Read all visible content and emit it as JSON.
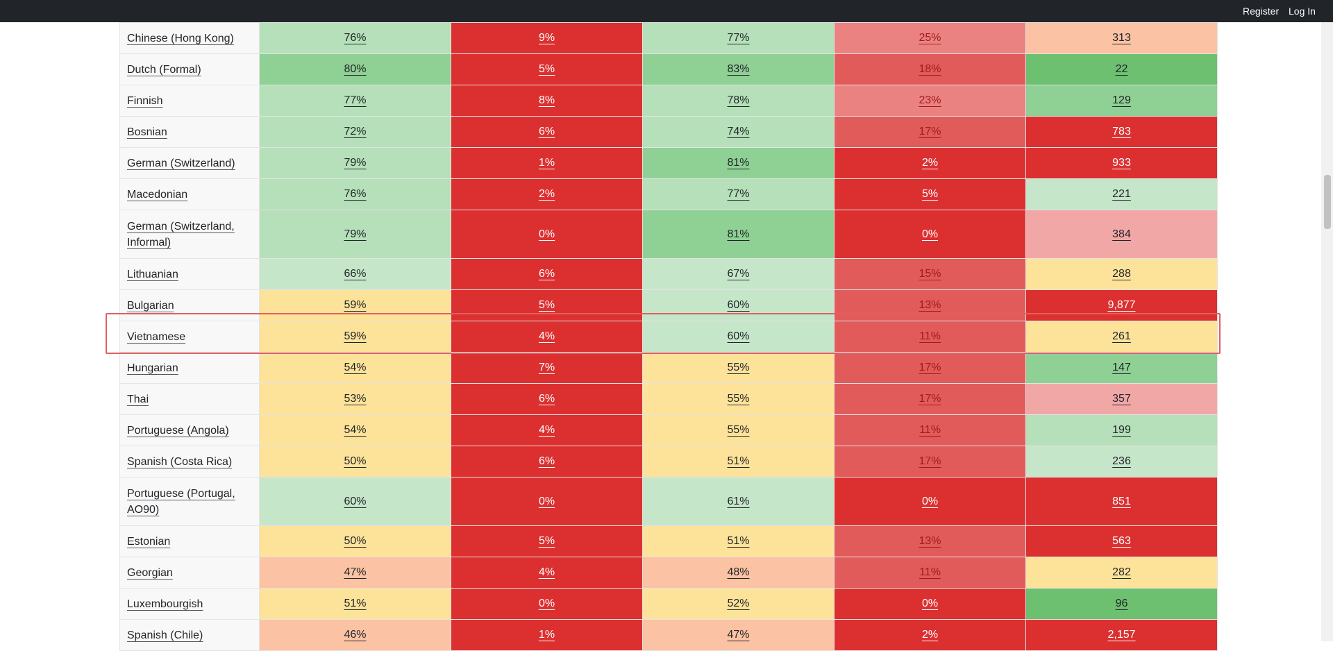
{
  "nav": {
    "register": "Register",
    "login": "Log In"
  },
  "rows": [
    {
      "language": "Chinese (Hong Kong)",
      "c1": "76%",
      "c2": "9%",
      "c3": "77%",
      "c4": "25%",
      "c5": "313"
    },
    {
      "language": "Dutch (Formal)",
      "c1": "80%",
      "c2": "5%",
      "c3": "83%",
      "c4": "18%",
      "c5": "22"
    },
    {
      "language": "Finnish",
      "c1": "77%",
      "c2": "8%",
      "c3": "78%",
      "c4": "23%",
      "c5": "129"
    },
    {
      "language": "Bosnian",
      "c1": "72%",
      "c2": "6%",
      "c3": "74%",
      "c4": "17%",
      "c5": "783"
    },
    {
      "language": "German (Switzerland)",
      "c1": "79%",
      "c2": "1%",
      "c3": "81%",
      "c4": "2%",
      "c5": "933"
    },
    {
      "language": "Macedonian",
      "c1": "76%",
      "c2": "2%",
      "c3": "77%",
      "c4": "5%",
      "c5": "221"
    },
    {
      "language": "German (Switzerland, Informal)",
      "c1": "79%",
      "c2": "0%",
      "c3": "81%",
      "c4": "0%",
      "c5": "384"
    },
    {
      "language": "Lithuanian",
      "c1": "66%",
      "c2": "6%",
      "c3": "67%",
      "c4": "15%",
      "c5": "288"
    },
    {
      "language": "Bulgarian",
      "c1": "59%",
      "c2": "5%",
      "c3": "60%",
      "c4": "13%",
      "c5": "9,877"
    },
    {
      "language": "Vietnamese",
      "c1": "59%",
      "c2": "4%",
      "c3": "60%",
      "c4": "11%",
      "c5": "261"
    },
    {
      "language": "Hungarian",
      "c1": "54%",
      "c2": "7%",
      "c3": "55%",
      "c4": "17%",
      "c5": "147"
    },
    {
      "language": "Thai",
      "c1": "53%",
      "c2": "6%",
      "c3": "55%",
      "c4": "17%",
      "c5": "357"
    },
    {
      "language": "Portuguese (Angola)",
      "c1": "54%",
      "c2": "4%",
      "c3": "55%",
      "c4": "11%",
      "c5": "199"
    },
    {
      "language": "Spanish (Costa Rica)",
      "c1": "50%",
      "c2": "6%",
      "c3": "51%",
      "c4": "17%",
      "c5": "236"
    },
    {
      "language": "Portuguese (Portugal, AO90)",
      "c1": "60%",
      "c2": "0%",
      "c3": "61%",
      "c4": "0%",
      "c5": "851"
    },
    {
      "language": "Estonian",
      "c1": "50%",
      "c2": "5%",
      "c3": "51%",
      "c4": "13%",
      "c5": "563"
    },
    {
      "language": "Georgian",
      "c1": "47%",
      "c2": "4%",
      "c3": "48%",
      "c4": "11%",
      "c5": "282"
    },
    {
      "language": "Luxembourgish",
      "c1": "51%",
      "c2": "0%",
      "c3": "52%",
      "c4": "0%",
      "c5": "96"
    },
    {
      "language": "Spanish (Chile)",
      "c1": "46%",
      "c2": "1%",
      "c3": "47%",
      "c4": "2%",
      "c5": "2,157"
    }
  ],
  "highlighted_row": "Vietnamese",
  "colors": {
    "topbar": "#212529",
    "green_light": "#b5e0b9",
    "green_pale": "#c6e6c9",
    "green_mid": "#8fd094",
    "green_dark": "#6cc070",
    "yellow": "#fde299",
    "peach": "#fbc2a3",
    "pink": "#f2a7a7",
    "salmon": "#eb8282",
    "red_mid": "#e25b5b",
    "red": "#dc3030",
    "highlight_border": "#e06060"
  }
}
